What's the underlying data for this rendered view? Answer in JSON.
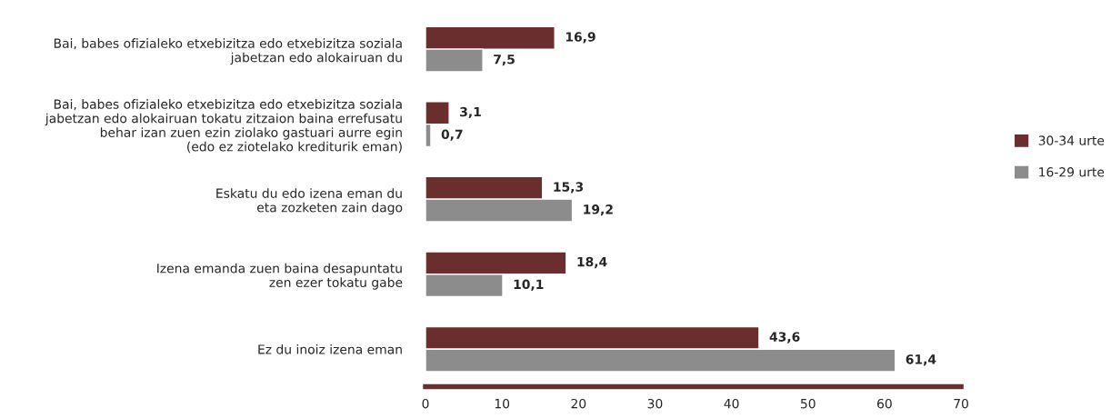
{
  "chart_data": {
    "type": "bar",
    "orientation": "horizontal",
    "categories": [
      "Bai, babes ofizialeko etxebizitza edo etxebizitza soziala\njabetzan edo alokairuan du",
      "Bai, babes ofizialeko etxebizitza edo etxebizitza soziala\njabetzan edo alokairuan tokatu zitzaion baina errefusatu\nbehar izan zuen ezin ziolako gastuari aurre egin\n(edo ez ziotelako krediturik eman)",
      "Eskatu du edo izena eman du\neta zozketen zain dago",
      "Izena emanda zuen baina desapuntatu\nzen ezer tokatu gabe",
      "Ez du inoiz izena eman"
    ],
    "series": [
      {
        "name": "30-34 urte",
        "color": "#6b2e2e",
        "values": [
          16.9,
          3.1,
          15.3,
          18.4,
          43.6
        ],
        "value_labels": [
          "16,9",
          "3,1",
          "15,3",
          "18,4",
          "43,6"
        ]
      },
      {
        "name": "16-29 urte",
        "color": "#8c8c8c",
        "values": [
          7.5,
          0.7,
          19.2,
          10.1,
          61.4
        ],
        "value_labels": [
          "7,5",
          "0,7",
          "19,2",
          "10,1",
          "61,4"
        ]
      }
    ],
    "xlim": [
      0,
      70
    ],
    "xticks": [
      0,
      10,
      20,
      30,
      40,
      50,
      60,
      70
    ],
    "grid": false,
    "legend": "right"
  }
}
